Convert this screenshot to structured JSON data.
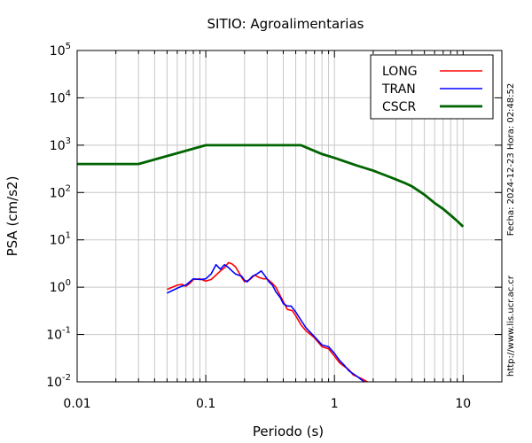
{
  "chart_data": {
    "type": "line",
    "title": "SITIO: Agroalimentarias",
    "xlabel": "Periodo (s)",
    "ylabel": "PSA (cm/s2)",
    "x_scale": "log",
    "y_scale": "log",
    "xlim": [
      0.01,
      20
    ],
    "ylim": [
      0.01,
      100000
    ],
    "x_tick_labels": [
      "0.01",
      "0.1",
      "1",
      "10"
    ],
    "x_tick_values": [
      0.01,
      0.1,
      1,
      10
    ],
    "y_tick_values": [
      0.01,
      0.1,
      1,
      10,
      100,
      1000,
      10000,
      100000
    ],
    "y_tick_labels": [
      {
        "base": "10",
        "exp": "-2"
      },
      {
        "base": "10",
        "exp": "-1"
      },
      {
        "base": "10",
        "exp": "0"
      },
      {
        "base": "10",
        "exp": "1"
      },
      {
        "base": "10",
        "exp": "2"
      },
      {
        "base": "10",
        "exp": "3"
      },
      {
        "base": "10",
        "exp": "4"
      },
      {
        "base": "10",
        "exp": "5"
      }
    ],
    "grid": true,
    "legend_position": "top-right",
    "series": [
      {
        "name": "LONG",
        "color": "#ff0000",
        "points": [
          [
            0.05,
            0.9
          ],
          [
            0.055,
            1.0
          ],
          [
            0.06,
            1.1
          ],
          [
            0.065,
            1.15
          ],
          [
            0.07,
            1.05
          ],
          [
            0.075,
            1.2
          ],
          [
            0.08,
            1.45
          ],
          [
            0.09,
            1.5
          ],
          [
            0.1,
            1.35
          ],
          [
            0.11,
            1.45
          ],
          [
            0.12,
            1.8
          ],
          [
            0.13,
            2.2
          ],
          [
            0.14,
            2.6
          ],
          [
            0.15,
            3.3
          ],
          [
            0.16,
            3.1
          ],
          [
            0.17,
            2.7
          ],
          [
            0.18,
            2.1
          ],
          [
            0.19,
            1.6
          ],
          [
            0.2,
            1.3
          ],
          [
            0.22,
            1.45
          ],
          [
            0.24,
            1.8
          ],
          [
            0.26,
            1.6
          ],
          [
            0.28,
            1.5
          ],
          [
            0.3,
            1.5
          ],
          [
            0.33,
            1.2
          ],
          [
            0.35,
            1.0
          ],
          [
            0.38,
            0.65
          ],
          [
            0.4,
            0.5
          ],
          [
            0.43,
            0.34
          ],
          [
            0.47,
            0.32
          ],
          [
            0.5,
            0.25
          ],
          [
            0.55,
            0.16
          ],
          [
            0.6,
            0.12
          ],
          [
            0.7,
            0.085
          ],
          [
            0.8,
            0.055
          ],
          [
            0.9,
            0.05
          ],
          [
            1.0,
            0.035
          ],
          [
            1.1,
            0.025
          ],
          [
            1.2,
            0.021
          ],
          [
            1.3,
            0.018
          ],
          [
            1.4,
            0.014
          ],
          [
            1.6,
            0.012
          ],
          [
            1.8,
            0.01
          ]
        ]
      },
      {
        "name": "TRAN",
        "color": "#0000ff",
        "points": [
          [
            0.05,
            0.75
          ],
          [
            0.055,
            0.85
          ],
          [
            0.06,
            0.95
          ],
          [
            0.065,
            1.05
          ],
          [
            0.07,
            1.1
          ],
          [
            0.075,
            1.3
          ],
          [
            0.08,
            1.5
          ],
          [
            0.09,
            1.45
          ],
          [
            0.1,
            1.5
          ],
          [
            0.11,
            1.9
          ],
          [
            0.12,
            3.0
          ],
          [
            0.13,
            2.4
          ],
          [
            0.14,
            3.0
          ],
          [
            0.15,
            2.6
          ],
          [
            0.16,
            2.2
          ],
          [
            0.17,
            1.9
          ],
          [
            0.19,
            1.7
          ],
          [
            0.2,
            1.4
          ],
          [
            0.21,
            1.3
          ],
          [
            0.23,
            1.7
          ],
          [
            0.25,
            1.9
          ],
          [
            0.27,
            2.2
          ],
          [
            0.29,
            1.7
          ],
          [
            0.31,
            1.3
          ],
          [
            0.33,
            1.1
          ],
          [
            0.35,
            0.8
          ],
          [
            0.38,
            0.6
          ],
          [
            0.4,
            0.45
          ],
          [
            0.43,
            0.4
          ],
          [
            0.46,
            0.4
          ],
          [
            0.5,
            0.3
          ],
          [
            0.55,
            0.2
          ],
          [
            0.6,
            0.14
          ],
          [
            0.7,
            0.09
          ],
          [
            0.8,
            0.06
          ],
          [
            0.9,
            0.055
          ],
          [
            1.0,
            0.04
          ],
          [
            1.1,
            0.028
          ],
          [
            1.2,
            0.022
          ],
          [
            1.3,
            0.017
          ],
          [
            1.5,
            0.013
          ],
          [
            1.7,
            0.01
          ]
        ]
      },
      {
        "name": "CSCR",
        "color": "#006400",
        "points": [
          [
            0.01,
            400
          ],
          [
            0.03,
            400
          ],
          [
            0.1,
            1000
          ],
          [
            0.55,
            1000
          ],
          [
            0.8,
            650
          ],
          [
            1.0,
            540
          ],
          [
            1.5,
            370
          ],
          [
            2.0,
            290
          ],
          [
            2.5,
            230
          ],
          [
            3.0,
            190
          ],
          [
            3.5,
            160
          ],
          [
            4.0,
            135
          ],
          [
            5.0,
            90
          ],
          [
            6.0,
            60
          ],
          [
            7.0,
            45
          ],
          [
            8.0,
            33
          ],
          [
            9.0,
            25
          ],
          [
            10.0,
            19
          ]
        ]
      }
    ],
    "side_text": {
      "date_time": "Fecha: 2024-12-23 Hora: 02:48:52",
      "url": "http://www.lis.ucr.ac.cr"
    }
  }
}
